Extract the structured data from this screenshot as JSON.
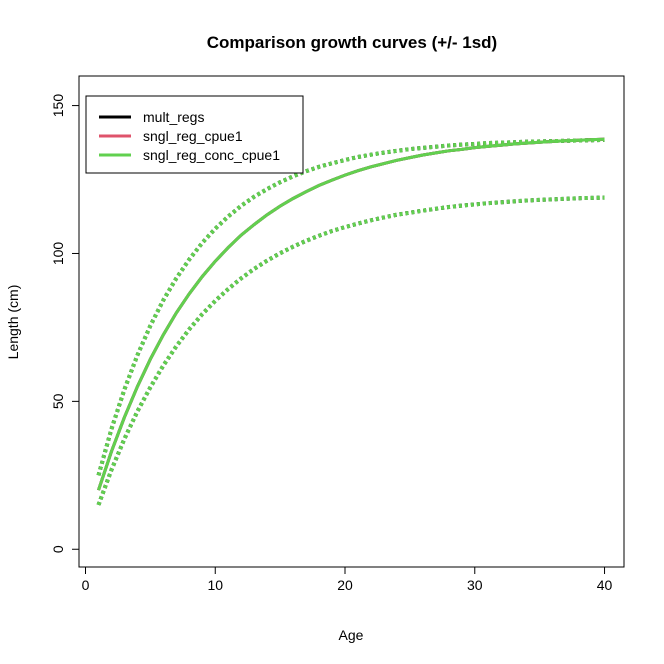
{
  "chart_data": {
    "type": "line",
    "title": "Comparison growth curves (+/- 1sd)",
    "xlabel": "Age",
    "ylabel": "Length (cm)",
    "xlim": [
      -0.5,
      41.5
    ],
    "ylim": [
      -6,
      160
    ],
    "xticks": [
      0,
      10,
      20,
      30,
      40
    ],
    "yticks": [
      0,
      50,
      100,
      150
    ],
    "grid": false,
    "legend_position": "top-left",
    "x": [
      1,
      2,
      3,
      4,
      5,
      6,
      7,
      8,
      9,
      10,
      11,
      12,
      13,
      14,
      15,
      16,
      17,
      18,
      19,
      20,
      21,
      22,
      23,
      24,
      25,
      26,
      27,
      28,
      29,
      30,
      31,
      32,
      33,
      34,
      35,
      36,
      37,
      38,
      39,
      40
    ],
    "series": [
      {
        "name": "mult_regs",
        "color": "#000000",
        "mean": [
          20.0,
          33.0,
          44.6,
          55.0,
          64.3,
          72.5,
          79.9,
          86.4,
          92.2,
          97.4,
          102.0,
          106.2,
          109.8,
          113.1,
          116.0,
          118.6,
          120.9,
          123.0,
          124.8,
          126.5,
          128.0,
          129.3,
          130.4,
          131.5,
          132.4,
          133.3,
          134.0,
          134.7,
          135.2,
          135.8,
          136.2,
          136.6,
          137.0,
          137.3,
          137.6,
          137.9,
          138.1,
          138.3,
          138.5,
          138.6
        ],
        "upper": [
          25.0,
          40.6,
          54.0,
          65.6,
          75.6,
          84.2,
          91.6,
          98.0,
          103.6,
          108.4,
          112.5,
          116.1,
          119.2,
          121.8,
          124.1,
          126.1,
          127.8,
          129.3,
          130.5,
          131.6,
          132.6,
          133.4,
          134.1,
          134.7,
          135.3,
          135.7,
          136.1,
          136.5,
          136.8,
          137.0,
          137.3,
          137.5,
          137.6,
          137.8,
          137.9,
          138.0,
          138.1,
          138.2,
          138.3,
          138.4
        ],
        "lower": [
          15.0,
          26.8,
          37.3,
          46.6,
          54.8,
          62.1,
          68.6,
          74.4,
          79.5,
          84.0,
          88.0,
          91.6,
          94.8,
          97.6,
          100.1,
          102.3,
          104.3,
          106.0,
          107.6,
          108.9,
          110.1,
          111.2,
          112.2,
          113.1,
          113.8,
          114.5,
          115.1,
          115.7,
          116.2,
          116.6,
          117.0,
          117.3,
          117.6,
          117.9,
          118.1,
          118.3,
          118.5,
          118.7,
          118.8,
          118.9
        ]
      },
      {
        "name": "sngl_reg_cpue1",
        "color": "#DF536B",
        "mean": [
          20.0,
          33.0,
          44.6,
          55.0,
          64.3,
          72.5,
          79.9,
          86.4,
          92.2,
          97.4,
          102.0,
          106.2,
          109.8,
          113.1,
          116.0,
          118.6,
          120.9,
          123.0,
          124.8,
          126.5,
          128.0,
          129.3,
          130.4,
          131.5,
          132.4,
          133.3,
          134.0,
          134.7,
          135.2,
          135.8,
          136.2,
          136.6,
          137.0,
          137.3,
          137.6,
          137.9,
          138.1,
          138.3,
          138.5,
          138.6
        ]
      },
      {
        "name": "sngl_reg_conc_cpue1",
        "color": "#61D04F",
        "mean": [
          20.0,
          33.0,
          44.6,
          55.0,
          64.3,
          72.5,
          79.9,
          86.4,
          92.2,
          97.4,
          102.0,
          106.2,
          109.8,
          113.1,
          116.0,
          118.6,
          120.9,
          123.0,
          124.8,
          126.5,
          128.0,
          129.3,
          130.4,
          131.5,
          132.4,
          133.3,
          134.0,
          134.7,
          135.2,
          135.8,
          136.2,
          136.6,
          137.0,
          137.3,
          137.6,
          137.9,
          138.1,
          138.3,
          138.5,
          138.6
        ],
        "upper": [
          25.0,
          40.6,
          54.0,
          65.6,
          75.6,
          84.2,
          91.6,
          98.0,
          103.6,
          108.4,
          112.5,
          116.1,
          119.2,
          121.8,
          124.1,
          126.1,
          127.8,
          129.3,
          130.5,
          131.6,
          132.6,
          133.4,
          134.1,
          134.7,
          135.3,
          135.7,
          136.1,
          136.5,
          136.8,
          137.0,
          137.3,
          137.5,
          137.6,
          137.8,
          137.9,
          138.0,
          138.1,
          138.2,
          138.3,
          138.4
        ],
        "lower": [
          15.0,
          26.8,
          37.3,
          46.6,
          54.8,
          62.1,
          68.6,
          74.4,
          79.5,
          84.0,
          88.0,
          91.6,
          94.8,
          97.6,
          100.1,
          102.3,
          104.3,
          106.0,
          107.6,
          108.9,
          110.1,
          111.2,
          112.2,
          113.1,
          113.8,
          114.5,
          115.1,
          115.7,
          116.2,
          116.6,
          117.0,
          117.3,
          117.6,
          117.9,
          118.1,
          118.3,
          118.5,
          118.7,
          118.8,
          118.9
        ]
      }
    ]
  }
}
